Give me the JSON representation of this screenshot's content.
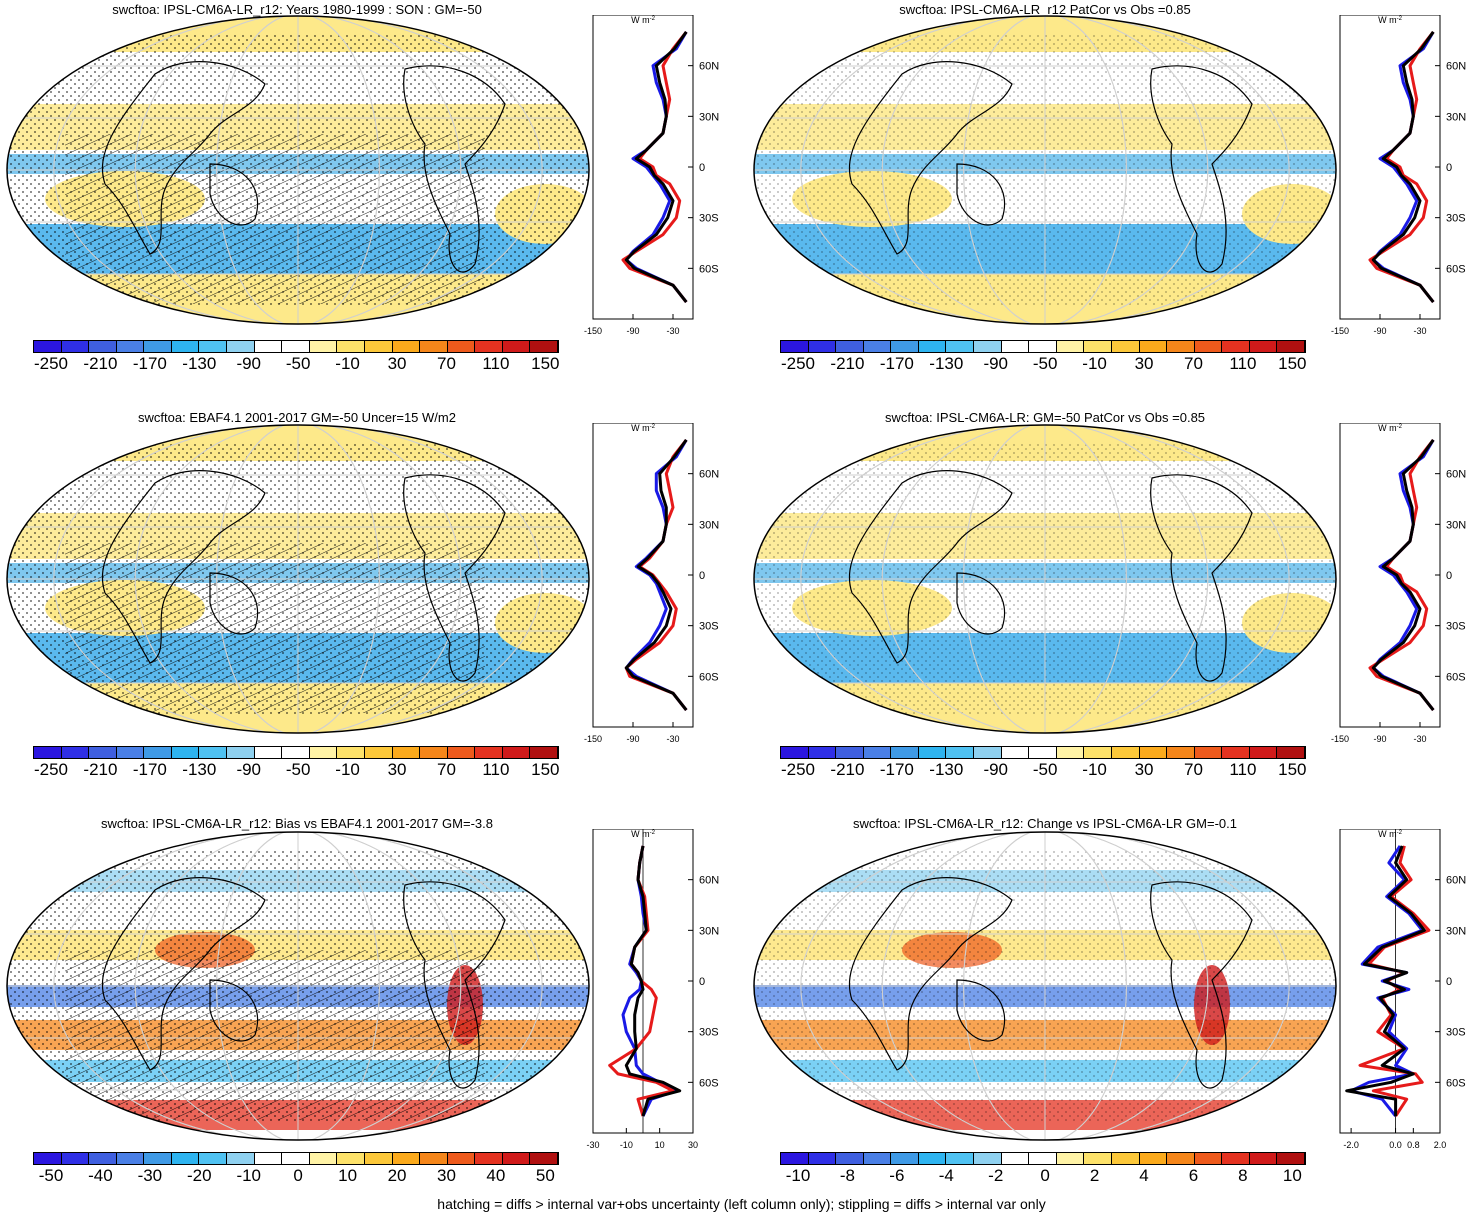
{
  "figure": {
    "footer": "hatching = diffs > internal var+obs uncertainty (left column only); stippling = diffs > internal var only",
    "unit_label": "W m",
    "unit_sup": "-2",
    "lat_labels": [
      "60N",
      "30N",
      "0",
      "30S",
      "60S"
    ]
  },
  "colors": {
    "bar13": [
      "#2b16e0",
      "#2f2fe6",
      "#3f5fe0",
      "#4a7fe6",
      "#3f9ae6",
      "#2eb4f0",
      "#4fc2f2",
      "#8fd1f0",
      "#ffffff",
      "#ffffff",
      "#fff3a6",
      "#fde26a",
      "#fcc83a",
      "#fbaa1c",
      "#f5861a",
      "#ee5a1c",
      "#e43220",
      "#d01a1a",
      "#b01010",
      "#f2f2f2"
    ],
    "diff": [
      "#2b16e0",
      "#2f2fe6",
      "#3f5fe0",
      "#4a7fe6",
      "#3f9ae6",
      "#2eb4f0",
      "#4fc2f2",
      "#8fd1f0",
      "#ffffff",
      "#ffffff",
      "#fff3a6",
      "#fde26a",
      "#fcc83a",
      "#fbaa1c",
      "#f5861a",
      "#ee5a1c",
      "#e43220",
      "#d01a1a",
      "#b01010",
      "#b01010"
    ],
    "model_line": "#1a1ae6",
    "obs_line": "#e61a1a",
    "mean_line": "#000000"
  },
  "panels": [
    {
      "title": "swcftoa: IPSL-CM6A-LR_r12: Years 1980-1999 : SON : GM=-50",
      "cbar_labels": [
        "-250",
        "-210",
        "-170",
        "-130",
        "-90",
        "-50",
        "-10",
        "30",
        "70",
        "110",
        "150"
      ],
      "zonal_ticks": [
        "-150",
        "-90",
        "-30"
      ],
      "chart_data": {
        "type": "line",
        "xlim": [
          -150,
          0
        ],
        "ylim": [
          -90,
          90
        ],
        "series": [
          {
            "lat": [
              80,
              70,
              60,
              50,
              40,
              30,
              20,
              10,
              5,
              0,
              -5,
              -10,
              -20,
              -30,
              -40,
              -50,
              -55,
              -60,
              -70,
              -80
            ],
            "values": [
              -10,
              -25,
              -60,
              -55,
              -45,
              -40,
              -45,
              -70,
              -90,
              -70,
              -60,
              -50,
              -35,
              -45,
              -60,
              -90,
              -100,
              -85,
              -30,
              -10
            ]
          },
          {
            "lat": [
              80,
              70,
              60,
              50,
              40,
              30,
              20,
              10,
              5,
              0,
              -5,
              -10,
              -20,
              -30,
              -40,
              -50,
              -55,
              -60,
              -70,
              -80
            ],
            "values": [
              -10,
              -30,
              -45,
              -40,
              -35,
              -40,
              -45,
              -70,
              -80,
              -60,
              -55,
              -35,
              -20,
              -25,
              -45,
              -85,
              -105,
              -95,
              -30,
              -10
            ]
          },
          {
            "lat": [
              80,
              70,
              60,
              50,
              40,
              30,
              20,
              10,
              5,
              0,
              -5,
              -10,
              -20,
              -30,
              -40,
              -50,
              -55,
              -60,
              -70,
              -80
            ],
            "values": [
              -10,
              -28,
              -55,
              -50,
              -42,
              -40,
              -45,
              -70,
              -85,
              -65,
              -58,
              -45,
              -30,
              -38,
              -55,
              -88,
              -100,
              -88,
              -30,
              -10
            ]
          }
        ]
      }
    },
    {
      "title": "swcftoa: IPSL-CM6A-LR_r12 PatCor vs Obs =0.85",
      "cbar_labels": [
        "-250",
        "-210",
        "-170",
        "-130",
        "-90",
        "-50",
        "-10",
        "30",
        "70",
        "110",
        "150"
      ],
      "zonal_ticks": [
        "-150",
        "-90",
        "-30"
      ],
      "chart_data": {
        "type": "line",
        "xlim": [
          -150,
          0
        ],
        "ylim": [
          -90,
          90
        ],
        "series": [
          {
            "lat": [
              80,
              70,
              60,
              50,
              40,
              30,
              20,
              10,
              5,
              0,
              -5,
              -10,
              -20,
              -30,
              -40,
              -50,
              -55,
              -60,
              -70,
              -80
            ],
            "values": [
              -10,
              -25,
              -60,
              -55,
              -45,
              -40,
              -45,
              -70,
              -90,
              -70,
              -60,
              -50,
              -35,
              -45,
              -60,
              -90,
              -100,
              -85,
              -30,
              -10
            ]
          },
          {
            "lat": [
              80,
              70,
              60,
              50,
              40,
              30,
              20,
              10,
              5,
              0,
              -5,
              -10,
              -20,
              -30,
              -40,
              -50,
              -55,
              -60,
              -70,
              -80
            ],
            "values": [
              -10,
              -30,
              -45,
              -40,
              -35,
              -40,
              -45,
              -70,
              -80,
              -60,
              -55,
              -35,
              -20,
              -25,
              -45,
              -85,
              -105,
              -95,
              -30,
              -10
            ]
          },
          {
            "lat": [
              80,
              70,
              60,
              50,
              40,
              30,
              20,
              10,
              5,
              0,
              -5,
              -10,
              -20,
              -30,
              -40,
              -50,
              -55,
              -60,
              -70,
              -80
            ],
            "values": [
              -10,
              -28,
              -55,
              -50,
              -42,
              -40,
              -45,
              -70,
              -85,
              -65,
              -58,
              -45,
              -30,
              -38,
              -55,
              -88,
              -100,
              -88,
              -30,
              -10
            ]
          }
        ]
      }
    },
    {
      "title": "swcftoa: EBAF4.1 2001-2017 GM=-50 Uncer=15 W/m2",
      "cbar_labels": [
        "-250",
        "-210",
        "-170",
        "-130",
        "-90",
        "-50",
        "-10",
        "30",
        "70",
        "110",
        "150"
      ],
      "zonal_ticks": [
        "-150",
        "-90",
        "-30"
      ],
      "chart_data": {
        "type": "line",
        "xlim": [
          -150,
          0
        ],
        "ylim": [
          -90,
          90
        ],
        "series": [
          {
            "lat": [
              80,
              70,
              60,
              50,
              40,
              30,
              20,
              10,
              5,
              0,
              -5,
              -10,
              -20,
              -30,
              -40,
              -50,
              -55,
              -60,
              -70,
              -80
            ],
            "values": [
              -10,
              -25,
              -55,
              -55,
              -45,
              -40,
              -45,
              -70,
              -85,
              -65,
              -55,
              -50,
              -40,
              -50,
              -65,
              -90,
              -100,
              -85,
              -30,
              -10
            ]
          },
          {
            "lat": [
              80,
              70,
              60,
              50,
              40,
              30,
              20,
              10,
              5,
              0,
              -5,
              -10,
              -20,
              -30,
              -40,
              -50,
              -55,
              -60,
              -70,
              -80
            ],
            "values": [
              -10,
              -30,
              -40,
              -35,
              -30,
              -40,
              -45,
              -65,
              -80,
              -60,
              -50,
              -40,
              -25,
              -30,
              -50,
              -85,
              -100,
              -95,
              -30,
              -10
            ]
          },
          {
            "lat": [
              80,
              70,
              60,
              50,
              40,
              30,
              20,
              10,
              5,
              0,
              -5,
              -10,
              -20,
              -30,
              -40,
              -50,
              -55,
              -60,
              -70,
              -80
            ],
            "values": [
              -10,
              -28,
              -50,
              -48,
              -40,
              -40,
              -45,
              -68,
              -82,
              -62,
              -52,
              -45,
              -33,
              -40,
              -58,
              -88,
              -100,
              -90,
              -30,
              -10
            ]
          }
        ]
      }
    },
    {
      "title": "swcftoa: IPSL-CM6A-LR: GM=-50 PatCor vs Obs =0.85",
      "cbar_labels": [
        "-250",
        "-210",
        "-170",
        "-130",
        "-90",
        "-50",
        "-10",
        "30",
        "70",
        "110",
        "150"
      ],
      "zonal_ticks": [
        "-150",
        "-90",
        "-30"
      ],
      "chart_data": {
        "type": "line",
        "xlim": [
          -150,
          0
        ],
        "ylim": [
          -90,
          90
        ],
        "series": [
          {
            "lat": [
              80,
              70,
              60,
              50,
              40,
              30,
              20,
              10,
              5,
              0,
              -5,
              -10,
              -20,
              -30,
              -40,
              -50,
              -55,
              -60,
              -70,
              -80
            ],
            "values": [
              -10,
              -25,
              -60,
              -55,
              -45,
              -40,
              -45,
              -70,
              -90,
              -70,
              -60,
              -50,
              -35,
              -45,
              -60,
              -90,
              -100,
              -85,
              -30,
              -10
            ]
          },
          {
            "lat": [
              80,
              70,
              60,
              50,
              40,
              30,
              20,
              10,
              5,
              0,
              -5,
              -10,
              -20,
              -30,
              -40,
              -50,
              -55,
              -60,
              -70,
              -80
            ],
            "values": [
              -10,
              -30,
              -45,
              -40,
              -35,
              -40,
              -45,
              -70,
              -80,
              -60,
              -55,
              -35,
              -20,
              -25,
              -45,
              -85,
              -105,
              -95,
              -30,
              -10
            ]
          },
          {
            "lat": [
              80,
              70,
              60,
              50,
              40,
              30,
              20,
              10,
              5,
              0,
              -5,
              -10,
              -20,
              -30,
              -40,
              -50,
              -55,
              -60,
              -70,
              -80
            ],
            "values": [
              -10,
              -28,
              -55,
              -50,
              -42,
              -40,
              -45,
              -70,
              -85,
              -65,
              -58,
              -45,
              -30,
              -38,
              -55,
              -88,
              -100,
              -88,
              -30,
              -10
            ]
          }
        ]
      }
    },
    {
      "title": "swcftoa: IPSL-CM6A-LR_r12: Bias vs EBAF4.1 2001-2017  GM=-3.8",
      "cbar_labels": [
        "-50",
        "-40",
        "-30",
        "-20",
        "-10",
        "0",
        "10",
        "20",
        "30",
        "40",
        "50"
      ],
      "zonal_ticks": [
        "-30",
        "-10",
        "10",
        "30"
      ],
      "chart_data": {
        "type": "line",
        "xlim": [
          -30,
          30
        ],
        "ylim": [
          -90,
          90
        ],
        "series": [
          {
            "lat": [
              80,
              70,
              60,
              50,
              40,
              30,
              20,
              10,
              5,
              0,
              -5,
              -10,
              -20,
              -30,
              -40,
              -50,
              -55,
              -60,
              -65,
              -70,
              -80
            ],
            "values": [
              0,
              -2,
              -3,
              -1,
              0,
              2,
              -5,
              -8,
              -4,
              -1,
              -2,
              -8,
              -12,
              -10,
              -5,
              -4,
              0,
              10,
              20,
              5,
              0
            ]
          },
          {
            "lat": [
              80,
              70,
              60,
              50,
              40,
              30,
              20,
              10,
              5,
              0,
              -5,
              -10,
              -20,
              -30,
              -40,
              -50,
              -55,
              -60,
              -65,
              -70,
              -80
            ],
            "values": [
              0,
              -2,
              -3,
              1,
              2,
              3,
              -5,
              -7,
              -3,
              -1,
              5,
              8,
              6,
              4,
              -4,
              -20,
              -15,
              8,
              18,
              -3,
              0
            ]
          },
          {
            "lat": [
              80,
              70,
              60,
              50,
              40,
              30,
              20,
              10,
              5,
              0,
              -5,
              -10,
              -20,
              -30,
              -40,
              -50,
              -55,
              -60,
              -65,
              -70,
              -80
            ],
            "values": [
              0,
              -2,
              -3,
              0,
              1,
              2,
              -5,
              -7,
              -3,
              -1,
              0,
              -3,
              -5,
              -5,
              -4,
              -10,
              -8,
              12,
              22,
              3,
              0
            ]
          }
        ]
      }
    },
    {
      "title": "swcftoa: IPSL-CM6A-LR_r12: Change vs IPSL-CM6A-LR GM=-0.1",
      "cbar_labels": [
        "-10",
        "-8",
        "-6",
        "-4",
        "-2",
        "0",
        "2",
        "4",
        "6",
        "8",
        "10"
      ],
      "zonal_ticks": [
        "-2.0",
        "0.0",
        "0.8",
        "2.0"
      ],
      "chart_data": {
        "type": "line",
        "xlim": [
          -2.5,
          2.0
        ],
        "ylim": [
          -90,
          90
        ],
        "series": [
          {
            "lat": [
              80,
              70,
              60,
              50,
              40,
              30,
              20,
              10,
              5,
              0,
              -5,
              -10,
              -20,
              -30,
              -40,
              -50,
              -55,
              -60,
              -65,
              -70,
              -80
            ],
            "values": [
              0.2,
              -0.3,
              0.4,
              -0.4,
              0.6,
              1.2,
              -0.8,
              -1.5,
              0.5,
              -0.6,
              0.6,
              -0.8,
              0.0,
              -0.3,
              0.5,
              0.0,
              0.8,
              -1.2,
              -2.0,
              -0.6,
              0
            ]
          },
          {
            "lat": [
              80,
              70,
              60,
              50,
              40,
              30,
              20,
              10,
              5,
              0,
              -5,
              -10,
              -20,
              -30,
              -40,
              -50,
              -55,
              -60,
              -65,
              -70,
              -80
            ],
            "values": [
              0.4,
              0.2,
              0.7,
              -0.2,
              0.8,
              1.5,
              -0.5,
              -1.2,
              0.4,
              -0.4,
              0.2,
              -0.6,
              -0.2,
              -0.8,
              0.4,
              -1.6,
              0.9,
              1.2,
              -1.0,
              0.5,
              0
            ]
          },
          {
            "lat": [
              80,
              70,
              60,
              50,
              40,
              30,
              20,
              10,
              5,
              0,
              -5,
              -10,
              -20,
              -30,
              -40,
              -50,
              -55,
              -60,
              -65,
              -70,
              -80
            ],
            "values": [
              0.3,
              0.0,
              0.5,
              -0.3,
              0.7,
              1.3,
              -0.6,
              -1.4,
              0.5,
              -0.5,
              0.4,
              -0.7,
              -0.1,
              -0.5,
              0.4,
              -0.6,
              0.8,
              -0.2,
              -2.2,
              0.0,
              0
            ]
          }
        ]
      }
    }
  ]
}
